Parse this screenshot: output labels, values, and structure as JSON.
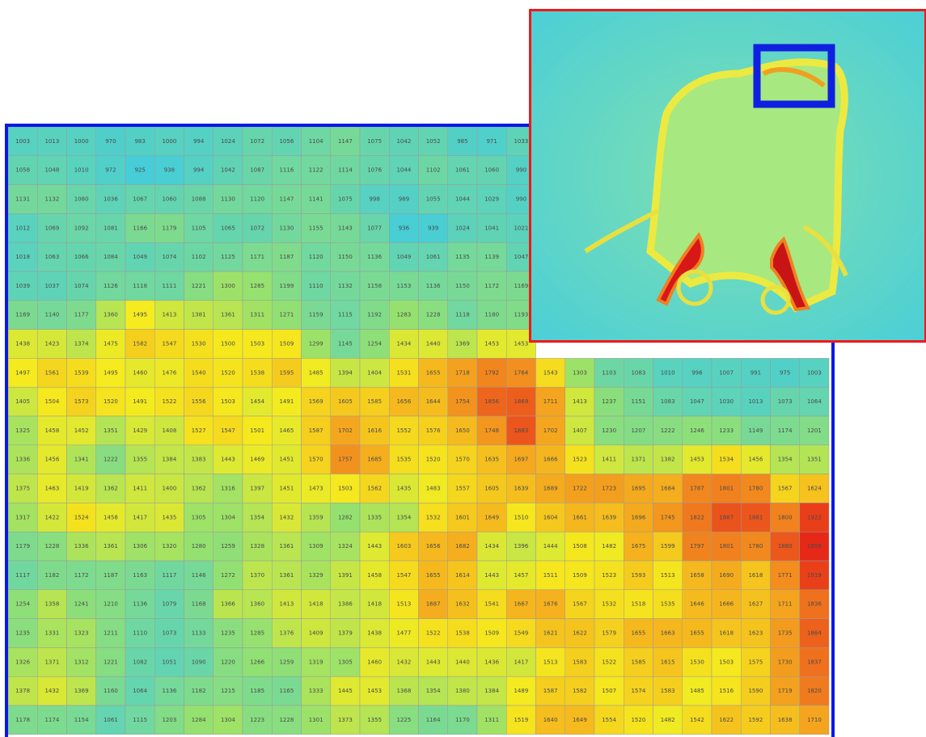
{
  "heatmap": {
    "rows": [
      [
        1003,
        1013,
        1000,
        970,
        983,
        1000,
        994,
        1024,
        1072,
        1056,
        1104,
        1147,
        1075,
        1042,
        1052,
        985,
        971,
        1033,
        null,
        null,
        null,
        null,
        null,
        null,
        null,
        null,
        null,
        null
      ],
      [
        1058,
        1048,
        1010,
        972,
        925,
        938,
        994,
        1042,
        1087,
        1116,
        1122,
        1114,
        1076,
        1044,
        1102,
        1061,
        1060,
        990,
        null,
        null,
        null,
        null,
        null,
        null,
        null,
        null,
        null,
        null
      ],
      [
        1131,
        1132,
        1080,
        1036,
        1067,
        1060,
        1088,
        1130,
        1120,
        1147,
        1141,
        1075,
        998,
        989,
        1055,
        1044,
        1029,
        990,
        null,
        null,
        null,
        null,
        null,
        null,
        null,
        null,
        null,
        null
      ],
      [
        1012,
        1069,
        1092,
        1081,
        1166,
        1179,
        1105,
        1065,
        1072,
        1130,
        1155,
        1143,
        1077,
        936,
        939,
        1024,
        1041,
        1021,
        null,
        null,
        null,
        null,
        null,
        null,
        null,
        null,
        null,
        null
      ],
      [
        1018,
        1063,
        1066,
        1084,
        1049,
        1074,
        1102,
        1125,
        1171,
        1187,
        1120,
        1150,
        1136,
        1049,
        1061,
        1135,
        1139,
        1047,
        null,
        null,
        null,
        null,
        null,
        null,
        null,
        null,
        null,
        null
      ],
      [
        1039,
        1037,
        1074,
        1126,
        1118,
        1111,
        1221,
        1300,
        1285,
        1199,
        1110,
        1132,
        1158,
        1153,
        1136,
        1150,
        1172,
        1169,
        null,
        null,
        null,
        null,
        null,
        null,
        null,
        null,
        null,
        null
      ],
      [
        1169,
        1140,
        1177,
        1360,
        1495,
        1413,
        1381,
        1361,
        1311,
        1271,
        1159,
        1115,
        1192,
        1283,
        1228,
        1118,
        1180,
        1193,
        null,
        null,
        null,
        null,
        null,
        null,
        null,
        null,
        null,
        null
      ],
      [
        1438,
        1423,
        1374,
        1475,
        1582,
        1547,
        1530,
        1500,
        1503,
        1509,
        1299,
        1145,
        1254,
        1434,
        1440,
        1369,
        1453,
        1453,
        null,
        null,
        null,
        null,
        null,
        null,
        null,
        null,
        null,
        null
      ],
      [
        1497,
        1561,
        1539,
        1495,
        1460,
        1476,
        1540,
        1520,
        1538,
        1595,
        1485,
        1394,
        1404,
        1531,
        1655,
        1718,
        1792,
        1764,
        1543,
        1303,
        1103,
        1083,
        1010,
        996,
        1007,
        991,
        975,
        1003
      ],
      [
        1405,
        1504,
        1573,
        1520,
        1491,
        1522,
        1556,
        1503,
        1454,
        1491,
        1569,
        1605,
        1585,
        1656,
        1644,
        1754,
        1856,
        1869,
        1711,
        1413,
        1237,
        1151,
        1083,
        1047,
        1030,
        1013,
        1073,
        1064
      ],
      [
        1325,
        1458,
        1452,
        1351,
        1429,
        1408,
        1527,
        1547,
        1501,
        1465,
        1587,
        1702,
        1616,
        1552,
        1576,
        1650,
        1748,
        1883,
        1702,
        1407,
        1230,
        1207,
        1222,
        1246,
        1233,
        1149,
        1174,
        1201
      ],
      [
        1336,
        1456,
        1341,
        1222,
        1355,
        1384,
        1383,
        1443,
        1469,
        1451,
        1570,
        1757,
        1685,
        1535,
        1520,
        1570,
        1635,
        1697,
        1666,
        1523,
        1411,
        1371,
        1382,
        1453,
        1534,
        1456,
        1354,
        1351
      ],
      [
        1375,
        1463,
        1419,
        1362,
        1411,
        1400,
        1362,
        1316,
        1397,
        1451,
        1473,
        1503,
        1562,
        1435,
        1483,
        1557,
        1605,
        1639,
        1689,
        1722,
        1723,
        1695,
        1684,
        1787,
        1801,
        1780,
        1567,
        1624
      ],
      [
        1317,
        1422,
        1524,
        1458,
        1417,
        1435,
        1305,
        1304,
        1354,
        1432,
        1359,
        1282,
        1335,
        1354,
        1532,
        1601,
        1649,
        1510,
        1604,
        1661,
        1639,
        1696,
        1745,
        1822,
        1887,
        1881,
        1800,
        1922
      ],
      [
        1179,
        1228,
        1336,
        1361,
        1306,
        1320,
        1280,
        1259,
        1328,
        1361,
        1309,
        1324,
        1443,
        1603,
        1656,
        1682,
        1434,
        1396,
        1444,
        1508,
        1482,
        1675,
        1599,
        1797,
        1801,
        1780,
        1880,
        1959
      ],
      [
        1117,
        1182,
        1172,
        1187,
        1163,
        1117,
        1146,
        1272,
        1370,
        1361,
        1329,
        1391,
        1458,
        1547,
        1655,
        1614,
        1443,
        1457,
        1511,
        1509,
        1523,
        1593,
        1513,
        1658,
        1690,
        1618,
        1771,
        1919
      ],
      [
        1254,
        1358,
        1241,
        1210,
        1136,
        1079,
        1168,
        1366,
        1360,
        1413,
        1418,
        1386,
        1418,
        1513,
        1687,
        1632,
        1541,
        1667,
        1676,
        1567,
        1532,
        1518,
        1535,
        1646,
        1666,
        1627,
        1711,
        1836
      ],
      [
        1235,
        1331,
        1323,
        1211,
        1110,
        1073,
        1133,
        1235,
        1285,
        1376,
        1409,
        1379,
        1438,
        1477,
        1522,
        1538,
        1509,
        1549,
        1621,
        1622,
        1579,
        1655,
        1663,
        1655,
        1618,
        1623,
        1735,
        1864
      ],
      [
        1326,
        1371,
        1312,
        1221,
        1082,
        1051,
        1090,
        1220,
        1266,
        1259,
        1319,
        1305,
        1460,
        1432,
        1443,
        1440,
        1436,
        1417,
        1513,
        1583,
        1522,
        1585,
        1615,
        1530,
        1503,
        1575,
        1730,
        1837
      ],
      [
        1378,
        1432,
        1369,
        1160,
        1064,
        1136,
        1182,
        1215,
        1185,
        1165,
        1333,
        1445,
        1453,
        1368,
        1354,
        1380,
        1384,
        1489,
        1587,
        1582,
        1507,
        1574,
        1583,
        1485,
        1516,
        1590,
        1719,
        1820
      ],
      [
        1178,
        1174,
        1154,
        1061,
        1115,
        1203,
        1284,
        1304,
        1223,
        1228,
        1301,
        1373,
        1355,
        1225,
        1164,
        1170,
        1311,
        1519,
        1640,
        1649,
        1554,
        1520,
        1482,
        1542,
        1622,
        1592,
        1638,
        1710
      ]
    ]
  }
}
